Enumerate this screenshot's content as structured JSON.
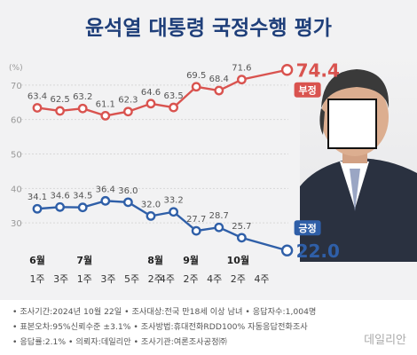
{
  "title": "윤석열 대통령 국정수행 평가",
  "chart_data": {
    "type": "line",
    "title": "윤석열 대통령 국정수행 평가",
    "unit": "(%)",
    "ylim": [
      20,
      80
    ],
    "yticks": [
      30,
      40,
      50,
      60,
      70
    ],
    "grid": true,
    "x_week_labels": [
      "1주",
      "3주",
      "1주",
      "3주",
      "5주",
      "2주",
      "4주",
      "2주",
      "4주",
      "2주",
      "4주"
    ],
    "x_month_labels": [
      {
        "label": "6월",
        "week_index": 0
      },
      {
        "label": "7월",
        "week_index": 2
      },
      {
        "label": "8월",
        "week_index": 5
      },
      {
        "label": "9월",
        "week_index": 7
      },
      {
        "label": "10월",
        "week_index": 9
      }
    ],
    "x_positions": [
      0,
      1,
      2,
      3,
      4,
      5,
      6,
      7,
      8,
      9,
      10,
      11
    ],
    "series": [
      {
        "name": "부정",
        "color": "#d9534f",
        "values": [
          63.4,
          62.5,
          63.2,
          61.1,
          62.3,
          64.6,
          63.5,
          69.5,
          68.4,
          71.6,
          74.4
        ],
        "points": [
          0,
          1,
          2,
          3,
          4,
          5,
          6,
          7,
          8,
          9,
          11
        ]
      },
      {
        "name": "긍정",
        "color": "#2f5fa8",
        "values": [
          34.1,
          34.6,
          34.5,
          36.4,
          36.0,
          32.0,
          33.2,
          27.7,
          28.7,
          25.7,
          22.0
        ],
        "points": [
          0,
          1,
          2,
          3,
          4,
          5,
          6,
          7,
          8,
          9,
          11
        ]
      }
    ]
  },
  "footer": [
    "• 조사기간:2024년 10월 22일  • 조사대상:전국 만18세 이상 남녀  • 응답자수:1,004명",
    "• 표본오차:95%신뢰수준 ±3.1%  • 조사방법:휴대전화RDD100% 자동응답전화조사",
    "• 응답률:2.1%  • 의뢰자:데일리안  • 조사기관:여론조사공정㈜"
  ],
  "logo": "데일리안"
}
